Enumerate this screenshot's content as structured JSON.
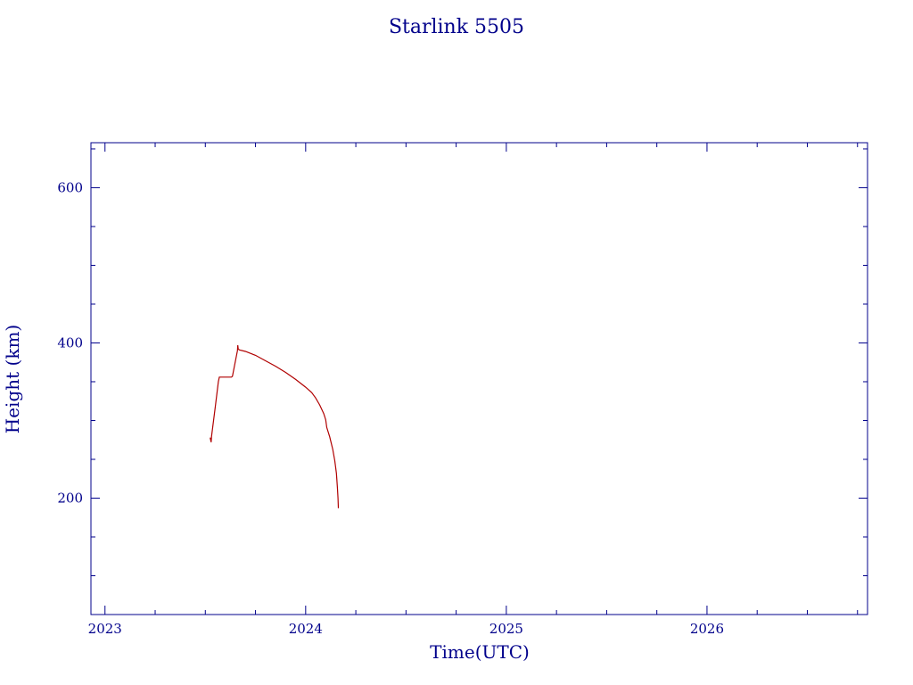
{
  "chart_data": {
    "type": "line",
    "title": "Starlink 5505",
    "xlabel": "Time(UTC)",
    "ylabel": "Height (km)",
    "xlim": [
      2022.93,
      2026.8
    ],
    "ylim": [
      50,
      658
    ],
    "x_ticks": [
      {
        "value": 2023,
        "label": "2023"
      },
      {
        "value": 2024,
        "label": "2024"
      },
      {
        "value": 2025,
        "label": "2025"
      },
      {
        "value": 2026,
        "label": "2026"
      }
    ],
    "x_minor_step": 0.25,
    "y_ticks": [
      {
        "value": 200,
        "label": "200"
      },
      {
        "value": 400,
        "label": "400"
      },
      {
        "value": 600,
        "label": "600"
      }
    ],
    "y_minor_step": 50,
    "grid": false,
    "series": [
      {
        "color": "#b00000",
        "points": [
          [
            2023.524,
            278
          ],
          [
            2023.529,
            272
          ],
          [
            2023.531,
            280
          ],
          [
            2023.55,
            318
          ],
          [
            2023.565,
            350
          ],
          [
            2023.57,
            356
          ],
          [
            2023.63,
            356
          ],
          [
            2023.635,
            357
          ],
          [
            2023.66,
            390
          ],
          [
            2023.662,
            397
          ],
          [
            2023.664,
            392
          ],
          [
            2023.67,
            391
          ],
          [
            2023.7,
            389
          ],
          [
            2023.75,
            384
          ],
          [
            2023.8,
            377
          ],
          [
            2023.85,
            370
          ],
          [
            2023.9,
            362
          ],
          [
            2023.95,
            353
          ],
          [
            2024.0,
            343
          ],
          [
            2024.03,
            336
          ],
          [
            2024.05,
            329
          ],
          [
            2024.07,
            320
          ],
          [
            2024.09,
            309
          ],
          [
            2024.1,
            301
          ],
          [
            2024.105,
            291
          ],
          [
            2024.12,
            279
          ],
          [
            2024.135,
            263
          ],
          [
            2024.145,
            248
          ],
          [
            2024.153,
            232
          ],
          [
            2024.158,
            214
          ],
          [
            2024.161,
            200
          ],
          [
            2024.163,
            187
          ]
        ]
      }
    ]
  }
}
